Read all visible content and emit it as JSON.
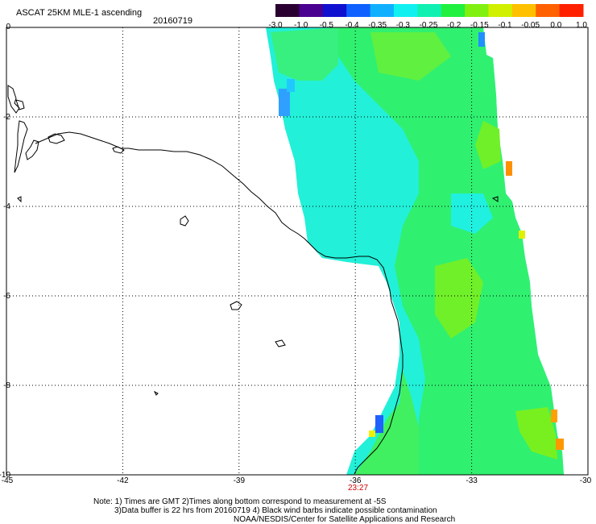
{
  "header": {
    "title": "ASCAT 25KM MLE-1 ascending",
    "date": "20160719"
  },
  "colorbar": {
    "labels": [
      "-3.0",
      "-1.0",
      "-0.5",
      "-0.4",
      "-0.35",
      "-0.3",
      "-0.25",
      "-0.2",
      "-0.15",
      "-0.1",
      "-0.05",
      "0.0",
      "1.0"
    ],
    "colors": [
      "#2a0030",
      "#4a0090",
      "#1010d0",
      "#1060ff",
      "#10b0ff",
      "#10f0f0",
      "#10f0b0",
      "#20f040",
      "#80f010",
      "#d0f000",
      "#ffc000",
      "#ff6000",
      "#ff2000"
    ]
  },
  "map": {
    "lat_labels": [
      "0",
      "-2",
      "-4",
      "-6",
      "-8",
      "-10"
    ],
    "lon_labels": [
      "-45",
      "-42",
      "-39",
      "-36",
      "-33",
      "-30"
    ],
    "time_label": "23:27",
    "time_color": "#cc0000",
    "grid": true,
    "swath_colors": {
      "cyan": "#20f0e0",
      "green": "#30f060",
      "lime": "#70f020",
      "blue": "#30a0ff",
      "orange": "#ff8000",
      "yellow": "#f0f000"
    }
  },
  "notes": {
    "line1": "Note: 1) Times are GMT 2)Times along bottom correspond to measurement at -5S",
    "line2": "3)Data buffer is 22 hrs from 20160719 4) Black wind barbs indicate possible contamination",
    "line3": "NOAA/NESDIS/Center for Satellite Applications and Research"
  }
}
